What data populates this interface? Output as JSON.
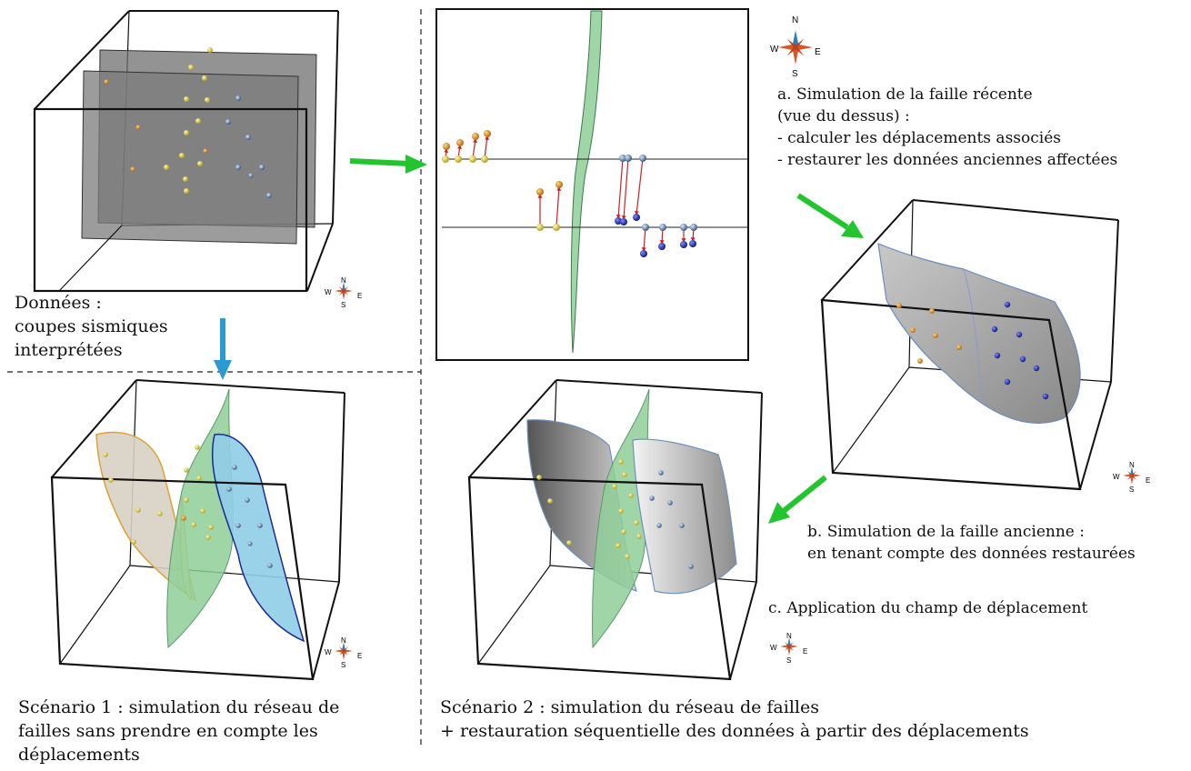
{
  "labels": {
    "donnees": [
      "Données :",
      "coupes sismiques",
      "interprétées"
    ],
    "step_a": [
      "a. Simulation de la faille récente",
      "(vue du dessus) :",
      "- calculer les déplacements associés",
      "- restaurer les données anciennes affectées"
    ],
    "step_b": [
      "b. Simulation de la faille ancienne :",
      "en tenant compte des données restaurées"
    ],
    "step_c": "c. Application du champ de déplacement",
    "scenario1": [
      "Scénario 1 : simulation du réseau de",
      "failles sans prendre en compte les",
      "déplacements"
    ],
    "scenario2": [
      "Scénario 2 : simulation du réseau de failles",
      "+ restauration séquentielle des données à partir des déplacements"
    ]
  },
  "compass": {
    "n": "N",
    "s": "S",
    "e": "E",
    "w": "W"
  },
  "colors": {
    "arrow_green": "#22c52e",
    "arrow_blue": "#2a9ad0",
    "fault_green": "#8fcf98",
    "fault_blue": "#8fcde8",
    "fault_beige": "#d8d0c4",
    "gray_surface": "#9a9a9a",
    "yellow_point": "#e8d23a",
    "orange_point": "#f0a020",
    "blue_point": "#2030b0",
    "displacement_red": "#d02020"
  },
  "icons": [
    "compass-rose-icon",
    "flow-arrow-icon"
  ]
}
